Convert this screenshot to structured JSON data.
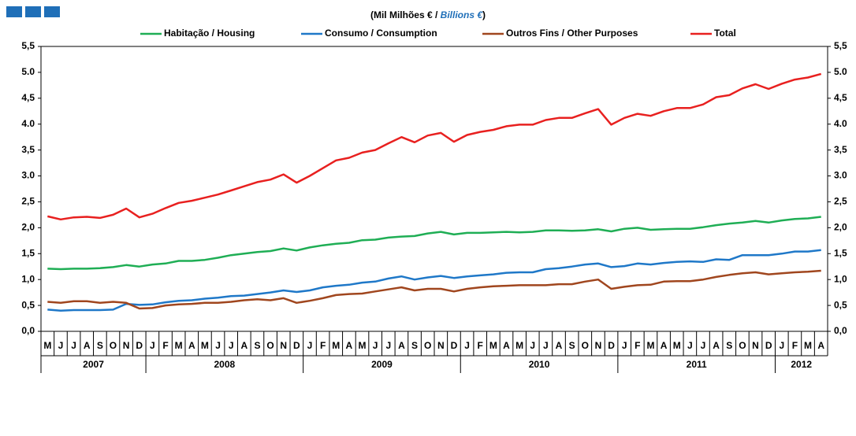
{
  "chart_data": {
    "type": "line",
    "subtitle": "(Mil Milhões € / ",
    "subtitle_italic": "Billions €",
    "subtitle_end": ")",
    "categories": [
      "M",
      "J",
      "J",
      "A",
      "S",
      "O",
      "N",
      "D",
      "J",
      "F",
      "M",
      "A",
      "M",
      "J",
      "J",
      "A",
      "S",
      "O",
      "N",
      "D",
      "J",
      "F",
      "M",
      "A",
      "M",
      "J",
      "J",
      "A",
      "S",
      "O",
      "N",
      "D",
      "J",
      "F",
      "M",
      "A",
      "M",
      "J",
      "J",
      "A",
      "S",
      "O",
      "N",
      "D",
      "J",
      "F",
      "M",
      "A",
      "M",
      "J",
      "J",
      "A",
      "S",
      "O",
      "N",
      "D",
      "J",
      "F",
      "M",
      "A"
    ],
    "years": [
      "2007",
      "2008",
      "2009",
      "2010",
      "2011",
      "2012"
    ],
    "ylim": [
      0,
      5.5
    ],
    "yticks": [
      {
        "value": 0,
        "label": "0,0"
      },
      {
        "value": 0.5,
        "label": "0,5"
      },
      {
        "value": 1,
        "label": "1,0"
      },
      {
        "value": 1.5,
        "label": "1,5"
      },
      {
        "value": 2,
        "label": "2,0"
      },
      {
        "value": 2.5,
        "label": "2,5"
      },
      {
        "value": 3,
        "label": "3.0"
      },
      {
        "value": 3.5,
        "label": "3,5"
      },
      {
        "value": 4,
        "label": "4.0"
      },
      {
        "value": 4.5,
        "label": "4,5"
      },
      {
        "value": 5,
        "label": "5.0"
      },
      {
        "value": 5.5,
        "label": "5,5"
      }
    ],
    "series": [
      {
        "name": "Habitação / Housing",
        "color": "#1fae55",
        "values": [
          1.21,
          1.2,
          1.21,
          1.21,
          1.22,
          1.24,
          1.28,
          1.25,
          1.29,
          1.31,
          1.36,
          1.36,
          1.38,
          1.42,
          1.47,
          1.5,
          1.53,
          1.55,
          1.6,
          1.56,
          1.62,
          1.66,
          1.69,
          1.71,
          1.76,
          1.77,
          1.81,
          1.83,
          1.84,
          1.89,
          1.92,
          1.87,
          1.9,
          1.9,
          1.91,
          1.92,
          1.91,
          1.92,
          1.95,
          1.95,
          1.94,
          1.95,
          1.97,
          1.93,
          1.98,
          2.0,
          1.96,
          1.97,
          1.98,
          1.98,
          2.01,
          2.05,
          2.08,
          2.1,
          2.13,
          2.1,
          2.14,
          2.17,
          2.18,
          2.21
        ]
      },
      {
        "name": "Consumo / Consumption",
        "color": "#1f78c8",
        "values": [
          0.42,
          0.4,
          0.41,
          0.41,
          0.41,
          0.42,
          0.53,
          0.51,
          0.52,
          0.56,
          0.59,
          0.6,
          0.63,
          0.65,
          0.68,
          0.69,
          0.72,
          0.75,
          0.79,
          0.76,
          0.79,
          0.85,
          0.88,
          0.9,
          0.94,
          0.96,
          1.02,
          1.06,
          1.0,
          1.04,
          1.07,
          1.03,
          1.06,
          1.08,
          1.1,
          1.13,
          1.14,
          1.14,
          1.2,
          1.22,
          1.25,
          1.29,
          1.31,
          1.24,
          1.26,
          1.31,
          1.29,
          1.32,
          1.34,
          1.35,
          1.34,
          1.39,
          1.38,
          1.47,
          1.47,
          1.47,
          1.5,
          1.54,
          1.54,
          1.57
        ]
      },
      {
        "name": "Outros Fins / Other Purposes",
        "color": "#a0461e",
        "values": [
          0.57,
          0.55,
          0.58,
          0.58,
          0.55,
          0.57,
          0.55,
          0.44,
          0.45,
          0.5,
          0.52,
          0.53,
          0.55,
          0.55,
          0.57,
          0.6,
          0.62,
          0.6,
          0.64,
          0.55,
          0.59,
          0.64,
          0.7,
          0.72,
          0.73,
          0.77,
          0.81,
          0.85,
          0.79,
          0.82,
          0.82,
          0.77,
          0.82,
          0.85,
          0.87,
          0.88,
          0.89,
          0.89,
          0.89,
          0.91,
          0.91,
          0.96,
          1.0,
          0.82,
          0.86,
          0.89,
          0.9,
          0.96,
          0.97,
          0.97,
          1.0,
          1.05,
          1.09,
          1.12,
          1.14,
          1.1,
          1.12,
          1.14,
          1.15,
          1.17
        ]
      },
      {
        "name": "Total",
        "color": "#e8201f",
        "values": [
          2.22,
          2.16,
          2.2,
          2.21,
          2.19,
          2.25,
          2.37,
          2.2,
          2.27,
          2.38,
          2.48,
          2.52,
          2.58,
          2.64,
          2.72,
          2.8,
          2.88,
          2.93,
          3.03,
          2.87,
          3.0,
          3.15,
          3.3,
          3.35,
          3.45,
          3.5,
          3.63,
          3.75,
          3.65,
          3.78,
          3.83,
          3.66,
          3.79,
          3.85,
          3.89,
          3.96,
          3.99,
          3.99,
          4.08,
          4.12,
          4.12,
          4.21,
          4.29,
          3.99,
          4.12,
          4.2,
          4.16,
          4.25,
          4.31,
          4.31,
          4.38,
          4.52,
          4.56,
          4.69,
          4.77,
          4.68,
          4.78,
          4.86,
          4.9,
          4.97
        ]
      }
    ]
  }
}
